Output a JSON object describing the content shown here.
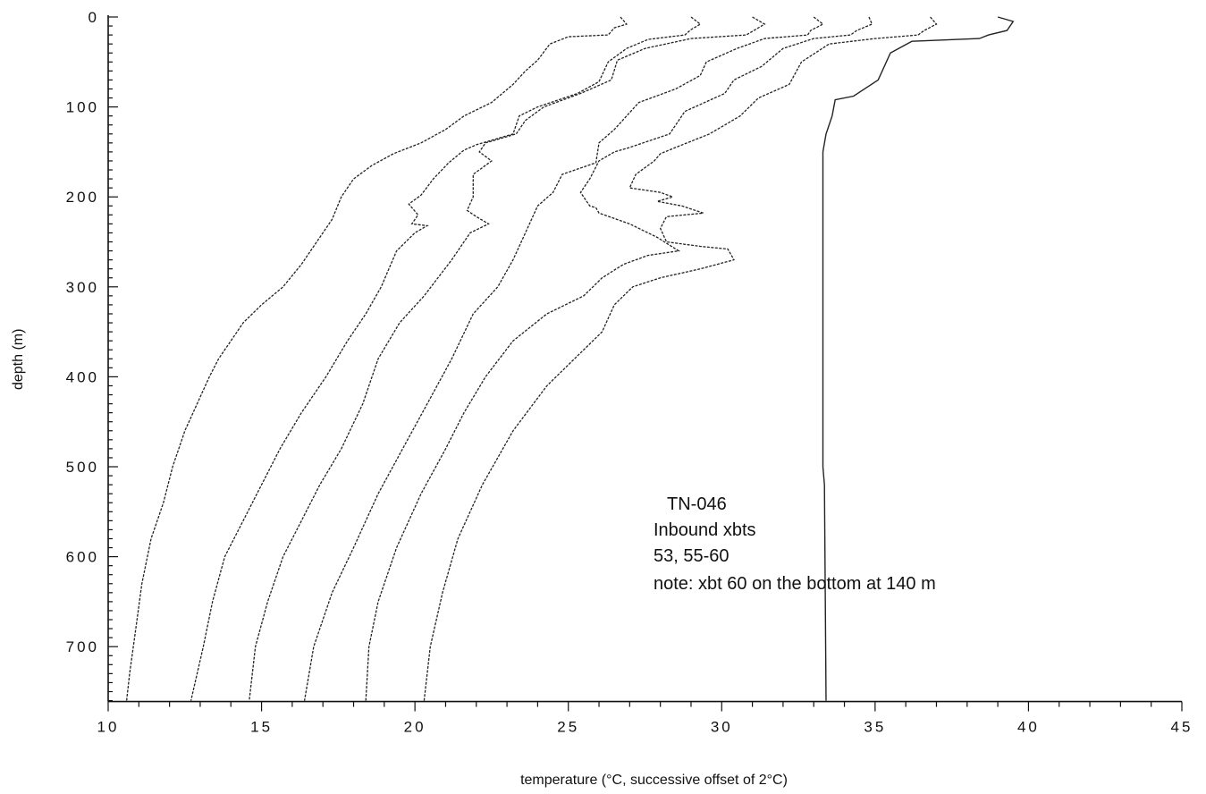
{
  "chart_data": {
    "type": "line",
    "title": "",
    "xlabel": "temperature (°C, successive offset of 2°C)",
    "ylabel": "depth (m)",
    "xlim": [
      10,
      45
    ],
    "ylim": [
      0,
      760
    ],
    "y_inverted": true,
    "x_ticks": [
      "10",
      "15",
      "20",
      "25",
      "30",
      "35",
      "40",
      "45"
    ],
    "y_ticks": [
      "0",
      "100",
      "200",
      "300",
      "400",
      "500",
      "600",
      "700"
    ],
    "grid": false,
    "annotation": [
      "TN-046",
      "Inbound xbts",
      "53, 55-60",
      "note: xbt 60 on the bottom at 140 m"
    ],
    "series": [
      {
        "points": [
          [
            26.7,
            0
          ],
          [
            26.9,
            8
          ],
          [
            26.5,
            12
          ],
          [
            26.3,
            20
          ],
          [
            25.0,
            22
          ],
          [
            24.4,
            30
          ],
          [
            24.0,
            48
          ],
          [
            23.6,
            60
          ],
          [
            23.2,
            75
          ],
          [
            22.5,
            95
          ],
          [
            21.6,
            110
          ],
          [
            21.0,
            125
          ],
          [
            20.2,
            140
          ],
          [
            19.3,
            152
          ],
          [
            18.6,
            165
          ],
          [
            18.0,
            180
          ],
          [
            17.6,
            200
          ],
          [
            17.3,
            225
          ],
          [
            16.8,
            250
          ],
          [
            16.3,
            275
          ],
          [
            15.7,
            300
          ],
          [
            15.0,
            320
          ],
          [
            14.4,
            340
          ],
          [
            14.0,
            360
          ],
          [
            13.6,
            380
          ],
          [
            13.3,
            400
          ],
          [
            12.9,
            430
          ],
          [
            12.5,
            460
          ],
          [
            12.1,
            500
          ],
          [
            11.8,
            540
          ],
          [
            11.4,
            580
          ],
          [
            11.1,
            630
          ],
          [
            10.9,
            680
          ],
          [
            10.7,
            730
          ],
          [
            10.6,
            760
          ]
        ]
      },
      {
        "points": [
          [
            29.0,
            0
          ],
          [
            29.3,
            8
          ],
          [
            29.0,
            14
          ],
          [
            28.8,
            20
          ],
          [
            27.6,
            25
          ],
          [
            26.9,
            35
          ],
          [
            26.3,
            50
          ],
          [
            26.0,
            72
          ],
          [
            25.3,
            85
          ],
          [
            24.0,
            100
          ],
          [
            23.4,
            110
          ],
          [
            23.2,
            130
          ],
          [
            22.0,
            142
          ],
          [
            21.6,
            148
          ],
          [
            21.1,
            162
          ],
          [
            20.6,
            180
          ],
          [
            20.2,
            198
          ],
          [
            19.8,
            208
          ],
          [
            20.1,
            220
          ],
          [
            19.9,
            230
          ],
          [
            20.4,
            232
          ],
          [
            20.0,
            240
          ],
          [
            19.4,
            260
          ],
          [
            18.9,
            300
          ],
          [
            18.4,
            330
          ],
          [
            17.8,
            360
          ],
          [
            17.1,
            400
          ],
          [
            16.3,
            440
          ],
          [
            15.6,
            480
          ],
          [
            15.0,
            520
          ],
          [
            14.4,
            560
          ],
          [
            13.8,
            600
          ],
          [
            13.4,
            650
          ],
          [
            13.1,
            700
          ],
          [
            12.7,
            760
          ]
        ]
      },
      {
        "points": [
          [
            31.0,
            0
          ],
          [
            31.4,
            8
          ],
          [
            31.0,
            16
          ],
          [
            30.8,
            20
          ],
          [
            29.0,
            24
          ],
          [
            27.5,
            35
          ],
          [
            26.6,
            48
          ],
          [
            26.4,
            70
          ],
          [
            25.4,
            85
          ],
          [
            24.2,
            100
          ],
          [
            23.6,
            115
          ],
          [
            23.3,
            130
          ],
          [
            22.3,
            140
          ],
          [
            22.1,
            150
          ],
          [
            22.5,
            160
          ],
          [
            21.9,
            175
          ],
          [
            21.9,
            200
          ],
          [
            21.7,
            215
          ],
          [
            22.0,
            222
          ],
          [
            22.4,
            230
          ],
          [
            21.8,
            240
          ],
          [
            21.2,
            270
          ],
          [
            20.3,
            310
          ],
          [
            19.5,
            340
          ],
          [
            18.8,
            380
          ],
          [
            18.3,
            430
          ],
          [
            17.6,
            480
          ],
          [
            16.9,
            520
          ],
          [
            16.3,
            560
          ],
          [
            15.7,
            600
          ],
          [
            15.2,
            650
          ],
          [
            14.8,
            700
          ],
          [
            14.6,
            760
          ]
        ]
      },
      {
        "points": [
          [
            33.0,
            0
          ],
          [
            33.3,
            8
          ],
          [
            32.9,
            15
          ],
          [
            32.8,
            20
          ],
          [
            31.4,
            24
          ],
          [
            30.5,
            35
          ],
          [
            29.5,
            50
          ],
          [
            29.3,
            65
          ],
          [
            28.5,
            80
          ],
          [
            27.3,
            95
          ],
          [
            26.9,
            110
          ],
          [
            26.5,
            125
          ],
          [
            26.0,
            140
          ],
          [
            25.9,
            162
          ],
          [
            24.8,
            175
          ],
          [
            24.5,
            195
          ],
          [
            24.0,
            210
          ],
          [
            23.6,
            240
          ],
          [
            23.2,
            270
          ],
          [
            22.7,
            300
          ],
          [
            21.9,
            330
          ],
          [
            21.2,
            380
          ],
          [
            20.4,
            430
          ],
          [
            19.6,
            480
          ],
          [
            18.8,
            530
          ],
          [
            18.0,
            590
          ],
          [
            17.3,
            640
          ],
          [
            16.7,
            700
          ],
          [
            16.4,
            760
          ]
        ]
      },
      {
        "points": [
          [
            34.8,
            0
          ],
          [
            34.9,
            8
          ],
          [
            34.4,
            15
          ],
          [
            34.2,
            20
          ],
          [
            33.0,
            24
          ],
          [
            32.0,
            35
          ],
          [
            31.3,
            55
          ],
          [
            30.4,
            70
          ],
          [
            30.1,
            85
          ],
          [
            28.8,
            105
          ],
          [
            28.3,
            130
          ],
          [
            27.0,
            145
          ],
          [
            26.5,
            150
          ],
          [
            26.0,
            160
          ],
          [
            25.7,
            180
          ],
          [
            25.4,
            195
          ],
          [
            25.7,
            210
          ],
          [
            25.9,
            212
          ],
          [
            26.0,
            218
          ],
          [
            27.0,
            230
          ],
          [
            27.9,
            245
          ],
          [
            28.6,
            260
          ],
          [
            27.6,
            265
          ],
          [
            26.8,
            275
          ],
          [
            26.1,
            290
          ],
          [
            25.5,
            310
          ],
          [
            24.3,
            330
          ],
          [
            23.2,
            360
          ],
          [
            22.3,
            400
          ],
          [
            21.6,
            440
          ],
          [
            21.0,
            480
          ],
          [
            20.2,
            530
          ],
          [
            19.4,
            590
          ],
          [
            18.8,
            650
          ],
          [
            18.5,
            700
          ],
          [
            18.4,
            760
          ]
        ]
      },
      {
        "points": [
          [
            36.8,
            0
          ],
          [
            37.0,
            8
          ],
          [
            36.6,
            15
          ],
          [
            36.4,
            20
          ],
          [
            35.0,
            24
          ],
          [
            33.5,
            30
          ],
          [
            32.6,
            50
          ],
          [
            32.2,
            75
          ],
          [
            31.2,
            90
          ],
          [
            30.6,
            110
          ],
          [
            29.6,
            130
          ],
          [
            28.5,
            145
          ],
          [
            28.0,
            152
          ],
          [
            27.8,
            160
          ],
          [
            27.2,
            175
          ],
          [
            27.0,
            190
          ],
          [
            28.0,
            195
          ],
          [
            28.4,
            200
          ],
          [
            27.9,
            205
          ],
          [
            28.7,
            210
          ],
          [
            29.4,
            218
          ],
          [
            28.2,
            222
          ],
          [
            28.0,
            235
          ],
          [
            28.2,
            250
          ],
          [
            29.3,
            255
          ],
          [
            30.2,
            258
          ],
          [
            30.4,
            270
          ],
          [
            29.3,
            280
          ],
          [
            28.0,
            290
          ],
          [
            27.1,
            300
          ],
          [
            26.5,
            320
          ],
          [
            26.1,
            350
          ],
          [
            25.2,
            380
          ],
          [
            24.3,
            410
          ],
          [
            23.2,
            460
          ],
          [
            22.2,
            520
          ],
          [
            21.4,
            580
          ],
          [
            20.9,
            640
          ],
          [
            20.5,
            700
          ],
          [
            20.3,
            760
          ]
        ]
      },
      {
        "points": [
          [
            39.0,
            0
          ],
          [
            39.5,
            5
          ],
          [
            39.3,
            15
          ],
          [
            38.7,
            20
          ],
          [
            38.4,
            24
          ],
          [
            36.2,
            27
          ],
          [
            35.5,
            40
          ],
          [
            35.1,
            70
          ],
          [
            34.3,
            88
          ],
          [
            33.7,
            92
          ],
          [
            33.6,
            110
          ],
          [
            33.4,
            130
          ],
          [
            33.3,
            150
          ],
          [
            33.3,
            300
          ],
          [
            33.3,
            500
          ],
          [
            33.35,
            520
          ],
          [
            33.4,
            760
          ]
        ]
      }
    ]
  }
}
